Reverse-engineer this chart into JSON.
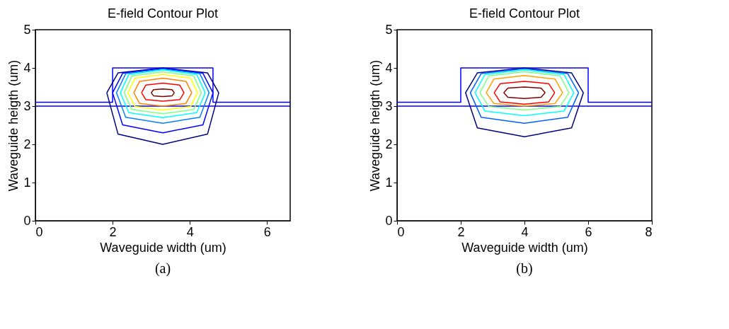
{
  "chart_data": [
    {
      "type": "line",
      "title": "E-field Contour Plot",
      "xlabel": "Waveguide width (um)",
      "ylabel": "Waveguide heigth (um)",
      "xlim": [
        0,
        6.6
      ],
      "ylim": [
        0,
        5
      ],
      "xticks": [
        0,
        2,
        4,
        6
      ],
      "yticks": [
        0,
        1,
        2,
        3,
        4,
        5
      ],
      "grid": false,
      "legend": false,
      "annotations": [
        "(a)"
      ],
      "series": [
        {
          "color": "#0000ff",
          "x": [
            0,
            2,
            2,
            4.6,
            4.6,
            6.6
          ],
          "values": [
            3.1,
            3.1,
            4.0,
            4.0,
            3.1,
            3.1
          ]
        },
        {
          "color": "#0000ff",
          "x": [
            0,
            6.6
          ],
          "values": [
            3.0,
            3.0
          ]
        },
        {
          "color": "#000080",
          "x": [
            1.85,
            2.14,
            3.3,
            4.46,
            4.75
          ],
          "values": [
            3.35,
            3.87,
            4.0,
            3.87,
            3.35
          ]
        },
        {
          "color": "#000080",
          "x": [
            1.85,
            2.14,
            3.3,
            4.46,
            4.75
          ],
          "values": [
            3.35,
            2.27,
            2.0,
            2.27,
            3.35
          ]
        },
        {
          "color": "#0000ff",
          "x": [
            2.0,
            2.26,
            3.3,
            4.34,
            4.6
          ],
          "values": [
            3.35,
            3.86,
            3.99,
            3.86,
            3.35
          ]
        },
        {
          "color": "#0000ff",
          "x": [
            2.0,
            2.26,
            3.3,
            4.34,
            4.6
          ],
          "values": [
            3.35,
            2.51,
            2.3,
            2.51,
            3.35
          ]
        },
        {
          "color": "#0080ff",
          "x": [
            2.1,
            2.34,
            3.3,
            4.26,
            4.5
          ],
          "values": [
            3.35,
            3.85,
            3.97,
            3.85,
            3.35
          ]
        },
        {
          "color": "#0080ff",
          "x": [
            2.1,
            2.34,
            3.3,
            4.26,
            4.5
          ],
          "values": [
            3.35,
            2.71,
            2.55,
            2.71,
            3.35
          ]
        },
        {
          "color": "#00ffff",
          "x": [
            2.2,
            2.42,
            3.3,
            4.18,
            4.4
          ],
          "values": [
            3.35,
            3.83,
            3.95,
            3.83,
            3.35
          ]
        },
        {
          "color": "#00ffff",
          "x": [
            2.2,
            2.42,
            3.3,
            4.18,
            4.4
          ],
          "values": [
            3.35,
            2.83,
            2.7,
            2.83,
            3.35
          ]
        },
        {
          "color": "#80ff80",
          "x": [
            2.3,
            2.5,
            3.3,
            4.1,
            4.3
          ],
          "values": [
            3.35,
            3.79,
            3.9,
            3.79,
            3.35
          ]
        },
        {
          "color": "#80ff80",
          "x": [
            2.3,
            2.5,
            3.3,
            4.1,
            4.3
          ],
          "values": [
            3.35,
            2.91,
            2.8,
            2.91,
            3.35
          ]
        },
        {
          "color": "#ffff00",
          "x": [
            2.4,
            2.58,
            3.3,
            4.02,
            4.2
          ],
          "values": [
            3.35,
            3.73,
            3.83,
            3.73,
            3.35
          ]
        },
        {
          "color": "#ffff00",
          "x": [
            2.4,
            2.58,
            3.3,
            4.02,
            4.2
          ],
          "values": [
            3.35,
            2.99,
            2.9,
            2.99,
            3.35
          ]
        },
        {
          "color": "#ff8000",
          "x": [
            2.55,
            2.7,
            3.3,
            3.9,
            4.05
          ],
          "values": [
            3.35,
            3.65,
            3.73,
            3.65,
            3.35
          ]
        },
        {
          "color": "#ff8000",
          "x": [
            2.55,
            2.7,
            3.3,
            3.9,
            4.05
          ],
          "values": [
            3.35,
            3.07,
            3.0,
            3.07,
            3.35
          ]
        },
        {
          "color": "#ff0000",
          "x": [
            2.75,
            2.86,
            3.3,
            3.74,
            3.85
          ],
          "values": [
            3.35,
            3.55,
            3.6,
            3.55,
            3.35
          ]
        },
        {
          "color": "#ff0000",
          "x": [
            2.75,
            2.86,
            3.3,
            3.74,
            3.85
          ],
          "values": [
            3.35,
            3.17,
            3.13,
            3.17,
            3.35
          ]
        },
        {
          "color": "#800000",
          "x": [
            3.0,
            3.06,
            3.3,
            3.54,
            3.6
          ],
          "values": [
            3.35,
            3.43,
            3.45,
            3.43,
            3.35
          ]
        },
        {
          "color": "#800000",
          "x": [
            3.0,
            3.06,
            3.3,
            3.54,
            3.6
          ],
          "values": [
            3.35,
            3.27,
            3.25,
            3.27,
            3.35
          ]
        }
      ]
    },
    {
      "type": "line",
      "title": "E-field Contour Plot",
      "xlabel": "Waveguide width (um)",
      "ylabel": "Waveguide heigth (um)",
      "xlim": [
        0,
        8
      ],
      "ylim": [
        0,
        5
      ],
      "xticks": [
        0,
        2,
        4,
        6,
        8
      ],
      "yticks": [
        0,
        1,
        2,
        3,
        4,
        5
      ],
      "grid": false,
      "legend": false,
      "annotations": [
        "(b)"
      ],
      "series": [
        {
          "color": "#0000ff",
          "x": [
            0,
            2,
            2,
            6,
            6,
            8
          ],
          "values": [
            3.1,
            3.1,
            4.0,
            4.0,
            3.1,
            3.1
          ]
        },
        {
          "color": "#0000ff",
          "x": [
            0,
            8
          ],
          "values": [
            3.0,
            3.0
          ]
        },
        {
          "color": "#000080",
          "x": [
            2.15,
            2.52,
            4.0,
            5.48,
            5.85
          ],
          "values": [
            3.35,
            3.87,
            4.0,
            3.87,
            3.35
          ]
        },
        {
          "color": "#000080",
          "x": [
            2.15,
            2.52,
            4.0,
            5.48,
            5.85
          ],
          "values": [
            3.35,
            2.43,
            2.2,
            2.43,
            3.35
          ]
        },
        {
          "color": "#0060ff",
          "x": [
            2.3,
            2.64,
            4.0,
            5.36,
            5.7
          ],
          "values": [
            3.35,
            3.85,
            3.98,
            3.85,
            3.35
          ]
        },
        {
          "color": "#0060ff",
          "x": [
            2.3,
            2.64,
            4.0,
            5.36,
            5.7
          ],
          "values": [
            3.35,
            2.71,
            2.55,
            2.71,
            3.35
          ]
        },
        {
          "color": "#00ffff",
          "x": [
            2.45,
            2.76,
            4.0,
            5.24,
            5.55
          ],
          "values": [
            3.35,
            3.83,
            3.95,
            3.83,
            3.35
          ]
        },
        {
          "color": "#00ffff",
          "x": [
            2.45,
            2.76,
            4.0,
            5.24,
            5.55
          ],
          "values": [
            3.35,
            2.87,
            2.75,
            2.87,
            3.35
          ]
        },
        {
          "color": "#80ff80",
          "x": [
            2.6,
            2.88,
            4.0,
            5.12,
            5.4
          ],
          "values": [
            3.35,
            3.79,
            3.9,
            3.79,
            3.35
          ]
        },
        {
          "color": "#80ff80",
          "x": [
            2.6,
            2.88,
            4.0,
            5.12,
            5.4
          ],
          "values": [
            3.35,
            2.99,
            2.9,
            2.99,
            3.35
          ]
        },
        {
          "color": "#ffa000",
          "x": [
            2.8,
            3.04,
            4.0,
            4.96,
            5.2
          ],
          "values": [
            3.35,
            3.71,
            3.8,
            3.71,
            3.35
          ]
        },
        {
          "color": "#ffa000",
          "x": [
            2.8,
            3.04,
            4.0,
            4.96,
            5.2
          ],
          "values": [
            3.35,
            3.07,
            3.0,
            3.07,
            3.35
          ]
        },
        {
          "color": "#ff0000",
          "x": [
            3.05,
            3.24,
            4.0,
            4.76,
            4.95
          ],
          "values": [
            3.35,
            3.59,
            3.65,
            3.59,
            3.35
          ]
        },
        {
          "color": "#ff0000",
          "x": [
            3.05,
            3.24,
            4.0,
            4.76,
            4.95
          ],
          "values": [
            3.35,
            3.11,
            3.05,
            3.11,
            3.35
          ]
        },
        {
          "color": "#800000",
          "x": [
            3.35,
            3.48,
            4.0,
            4.52,
            4.65
          ],
          "values": [
            3.35,
            3.47,
            3.5,
            3.47,
            3.35
          ]
        },
        {
          "color": "#800000",
          "x": [
            3.35,
            3.48,
            4.0,
            4.52,
            4.65
          ],
          "values": [
            3.35,
            3.23,
            3.2,
            3.23,
            3.35
          ]
        }
      ]
    }
  ]
}
